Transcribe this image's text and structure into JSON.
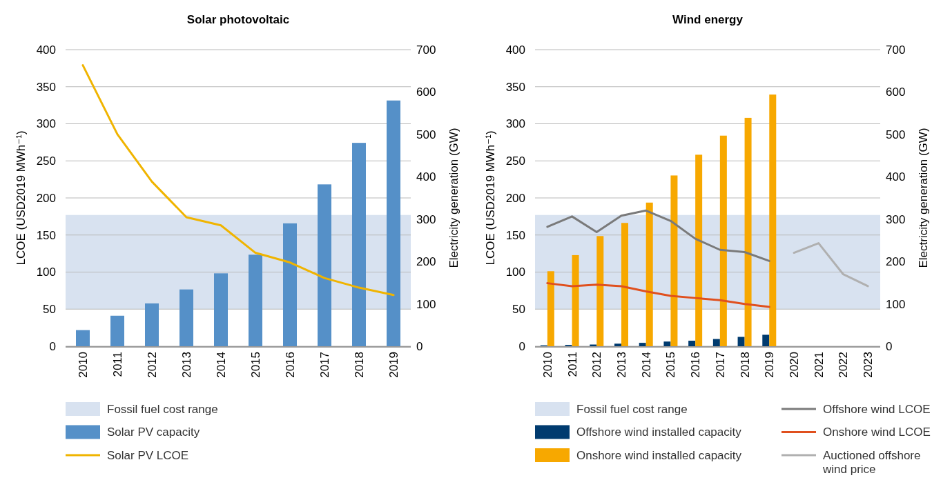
{
  "chart_data": [
    {
      "type": "bar",
      "title": "Solar photovoltaic",
      "ylabel": "LCOE (USD2019 MWh⁻¹)",
      "y2label": "Electricity generation (GW)",
      "categories": [
        "2010",
        "2011",
        "2012",
        "2013",
        "2014",
        "2015",
        "2016",
        "2017",
        "2018",
        "2019"
      ],
      "ylim": [
        0,
        400
      ],
      "yticks": [
        0,
        50,
        100,
        150,
        200,
        250,
        300,
        350,
        400
      ],
      "y2lim": [
        0,
        700
      ],
      "y2ticks": [
        0,
        100,
        200,
        300,
        400,
        500,
        600,
        700
      ],
      "grid": "y",
      "legend": "bottom",
      "bands": [
        {
          "axis": "y",
          "from": 50,
          "to": 177,
          "label": "Fossil fuel cost range",
          "color": "#d8e2f0"
        }
      ],
      "series": [
        {
          "name": "Solar PV capacity",
          "axis": "y2",
          "color": "#5590c8",
          "values": [
            38,
            72,
            101,
            134,
            172,
            216,
            290,
            382,
            480,
            580
          ]
        },
        {
          "name": "Solar PV LCOE",
          "type": "line",
          "color": "#f0b400",
          "values": [
            379,
            286,
            222,
            174,
            163,
            126,
            113,
            92,
            79,
            69
          ]
        }
      ]
    },
    {
      "type": "bar",
      "title": "Wind energy",
      "ylabel": "LCOE (USD2019 MWh⁻¹)",
      "y2label": "Electricity generation (GW)",
      "categories": [
        "2010",
        "2011",
        "2012",
        "2013",
        "2014",
        "2015",
        "2016",
        "2017",
        "2018",
        "2019",
        "2020",
        "2021",
        "2022",
        "2023"
      ],
      "ylim": [
        0,
        400
      ],
      "yticks": [
        0,
        50,
        100,
        150,
        200,
        250,
        300,
        350,
        400
      ],
      "y2lim": [
        0,
        700
      ],
      "y2ticks": [
        0,
        100,
        200,
        300,
        400,
        500,
        600,
        700
      ],
      "grid": "y",
      "legend": "bottom",
      "bands": [
        {
          "axis": "y",
          "from": 50,
          "to": 177,
          "label": "Fossil fuel cost range",
          "color": "#d8e2f0"
        }
      ],
      "series": [
        {
          "name": "Offshore wind installed capacity",
          "axis": "y2",
          "color": "#003b6f",
          "values": [
            2,
            3,
            4,
            6,
            8,
            11,
            13,
            17,
            22,
            27,
            null,
            null,
            null,
            null
          ]
        },
        {
          "name": "Onshore wind installed capacity",
          "axis": "y2",
          "color": "#f7a800",
          "values": [
            177,
            215,
            260,
            291,
            339,
            403,
            452,
            497,
            539,
            594,
            null,
            null,
            null,
            null
          ]
        },
        {
          "name": "Offshore wind LCOE",
          "type": "line",
          "color": "#7a7a7a",
          "values": [
            161,
            175,
            154,
            176,
            183,
            169,
            145,
            130,
            127,
            115,
            null,
            null,
            null,
            null
          ]
        },
        {
          "name": "Onshore wind LCOE",
          "type": "line",
          "color": "#e0501e",
          "values": [
            85,
            81,
            83,
            81,
            74,
            68,
            65,
            62,
            57,
            53,
            null,
            null,
            null,
            null
          ]
        },
        {
          "name": "Auctioned offshore wind price",
          "type": "line",
          "color": "#b0b0b0",
          "values": [
            null,
            null,
            null,
            null,
            null,
            null,
            null,
            null,
            null,
            null,
            126,
            139,
            97,
            81
          ]
        }
      ]
    }
  ]
}
